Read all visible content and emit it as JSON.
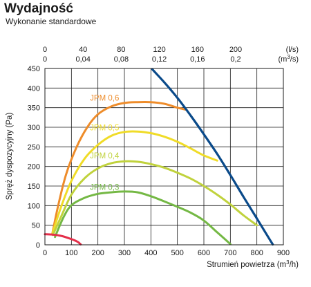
{
  "header": {
    "title": "Wydajność",
    "subtitle": "Wykonanie standardowe"
  },
  "chart_data": {
    "type": "line",
    "xlabel": "Strumień powietrza",
    "xlabel_unit_pre": "(m",
    "xlabel_unit_sup": "3",
    "xlabel_unit_post": "/h)",
    "ylabel": "Spręż dyspozycyjny (Pa)",
    "xlim": [
      0,
      900
    ],
    "ylim": [
      0,
      450
    ],
    "x_ticks": [
      "0",
      "100",
      "200",
      "300",
      "400",
      "500",
      "600",
      "700",
      "800",
      "900"
    ],
    "y_ticks": [
      "0",
      "50",
      "100",
      "150",
      "200",
      "250",
      "300",
      "350",
      "400",
      "450"
    ],
    "top_axis_ls": {
      "unit": "(l/s)",
      "ticks": [
        {
          "label": "0",
          "ls": 0
        },
        {
          "label": "40",
          "ls": 40
        },
        {
          "label": "80",
          "ls": 80
        },
        {
          "label": "120",
          "ls": 120
        },
        {
          "label": "160",
          "ls": 160
        },
        {
          "label": "200",
          "ls": 200
        }
      ]
    },
    "top_axis_m3s": {
      "unit_pre": "(m",
      "unit_sup": "3",
      "unit_post": "/s)",
      "ticks": [
        {
          "label": "0",
          "m3s": 0
        },
        {
          "label": "0,04",
          "m3s": 0.04
        },
        {
          "label": "0,08",
          "m3s": 0.08
        },
        {
          "label": "0,12",
          "m3s": 0.12
        },
        {
          "label": "0,16",
          "m3s": 0.16
        },
        {
          "label": "0,2",
          "m3s": 0.2
        }
      ]
    },
    "grid": true,
    "series": [
      {
        "name": "JPM 0,6",
        "color": "#ee8c2a",
        "label_at": [
          170,
          375
        ],
        "x": [
          28,
          50,
          80,
          120,
          160,
          200,
          250,
          300,
          350,
          400,
          450,
          500,
          530
        ],
        "y": [
          28,
          100,
          180,
          250,
          300,
          333,
          353,
          362,
          364,
          364,
          360,
          350,
          345
        ]
      },
      {
        "name": "JPM 0,5",
        "color": "#f0dc28",
        "label_at": [
          170,
          299
        ],
        "x": [
          28,
          60,
          100,
          150,
          200,
          250,
          300,
          350,
          400,
          450,
          500,
          550,
          600,
          650
        ],
        "y": [
          28,
          95,
          163,
          220,
          255,
          278,
          288,
          289,
          285,
          276,
          263,
          246,
          228,
          215
        ]
      },
      {
        "name": "JPM 0,4",
        "color": "#c0d23c",
        "label_at": [
          170,
          228
        ],
        "x": [
          30,
          60,
          100,
          150,
          200,
          250,
          300,
          350,
          400,
          450,
          500,
          550,
          600,
          650,
          700,
          750,
          800
        ],
        "y": [
          25,
          70,
          128,
          170,
          195,
          208,
          213,
          212,
          206,
          197,
          184,
          169,
          150,
          128,
          103,
          75,
          50
        ]
      },
      {
        "name": "JPM 0,3",
        "color": "#74b844",
        "label_at": [
          170,
          147
        ],
        "x": [
          38,
          70,
          100,
          150,
          200,
          250,
          300,
          350,
          400,
          450,
          500,
          550,
          600,
          650,
          700
        ],
        "y": [
          20,
          70,
          101,
          120,
          130,
          134,
          136,
          134,
          124,
          111,
          97,
          82,
          62,
          32,
          2
        ]
      },
      {
        "name": "",
        "color": "#e42f4a",
        "x": [
          0,
          30,
          60,
          90,
          110,
          125,
          135
        ],
        "y": [
          27,
          26,
          23,
          17,
          12,
          7,
          1
        ]
      },
      {
        "name": "",
        "color": "#0a4a8a",
        "x": [
          405,
          450,
          500,
          550,
          600,
          650,
          700,
          750,
          800,
          850,
          860
        ],
        "y": [
          448,
          415,
          375,
          330,
          282,
          232,
          178,
          122,
          67,
          12,
          1
        ]
      }
    ]
  }
}
